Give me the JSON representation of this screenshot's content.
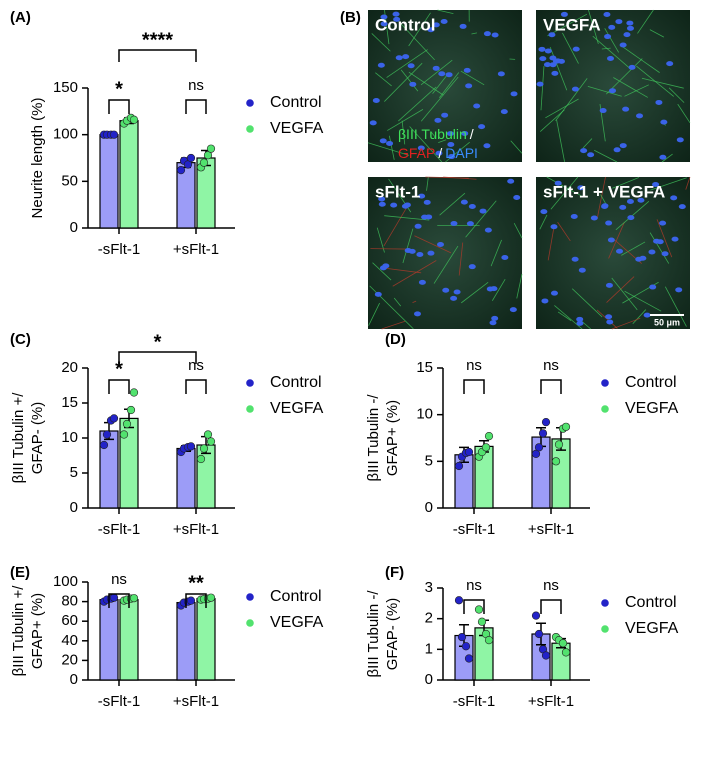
{
  "chart_data": [
    {
      "type": "bar",
      "panel_label": "(A)",
      "ylabel": [
        "Neurite length (%)"
      ],
      "categories": [
        "-sFlt-1",
        "+sFlt-1"
      ],
      "series": [
        {
          "name": "Control",
          "color": "#9c9cf7",
          "point_color": "#2323c8",
          "values": [
            100,
            70
          ],
          "errors": [
            0,
            5
          ],
          "points": [
            [
              100,
              100,
              100,
              100
            ],
            [
              62,
              72,
              68,
              75
            ]
          ]
        },
        {
          "name": "VEGFA",
          "color": "#8ff5a5",
          "point_color": "#52e26e",
          "values": [
            115,
            75
          ],
          "errors": [
            3,
            8
          ],
          "points": [
            [
              112,
              115,
              118,
              116
            ],
            [
              65,
              70,
              78,
              85
            ]
          ]
        }
      ],
      "ylim": [
        0,
        150
      ],
      "yticks": [
        0,
        50,
        100,
        150
      ],
      "brackets": {
        "within": [
          "*",
          "ns"
        ],
        "across": "****"
      }
    },
    {
      "type": "bar",
      "panel_label": "(C)",
      "ylabel": [
        "βIII Tubulin +/",
        "GFAP- (%)"
      ],
      "categories": [
        "-sFlt-1",
        "+sFlt-1"
      ],
      "series": [
        {
          "name": "Control",
          "color": "#9c9cf7",
          "point_color": "#2323c8",
          "values": [
            11,
            8.5
          ],
          "errors": [
            1.2,
            0.4
          ],
          "points": [
            [
              9,
              10.5,
              12.5,
              12.8
            ],
            [
              8,
              8.5,
              8.7,
              8.8
            ]
          ]
        },
        {
          "name": "VEGFA",
          "color": "#8ff5a5",
          "point_color": "#52e26e",
          "values": [
            12.8,
            9
          ],
          "errors": [
            1.3,
            1.2
          ],
          "points": [
            [
              10.5,
              12,
              14,
              16.5
            ],
            [
              7,
              8.5,
              10.5,
              9.5
            ]
          ]
        }
      ],
      "ylim": [
        0,
        20
      ],
      "yticks": [
        0,
        5,
        10,
        15,
        20
      ],
      "brackets": {
        "within": [
          "*",
          "ns"
        ],
        "across": "*"
      }
    },
    {
      "type": "bar",
      "panel_label": "(D)",
      "ylabel": [
        "βIII Tubulin -/",
        "GFAP+ (%)"
      ],
      "categories": [
        "-sFlt-1",
        "+sFlt-1"
      ],
      "series": [
        {
          "name": "Control",
          "color": "#9c9cf7",
          "point_color": "#2323c8",
          "values": [
            5.7,
            7.6
          ],
          "errors": [
            0.8,
            1.0
          ],
          "points": [
            [
              4.5,
              5.5,
              5.9,
              6
            ],
            [
              5.8,
              6.5,
              8,
              9.2
            ]
          ]
        },
        {
          "name": "VEGFA",
          "color": "#8ff5a5",
          "point_color": "#52e26e",
          "values": [
            6.6,
            7.4
          ],
          "errors": [
            0.6,
            1.2
          ],
          "points": [
            [
              5.5,
              6,
              6.5,
              7.7
            ],
            [
              5,
              6.8,
              8.5,
              8.7
            ]
          ]
        }
      ],
      "ylim": [
        0,
        15
      ],
      "yticks": [
        0,
        5,
        10,
        15
      ],
      "brackets": {
        "within": [
          "ns",
          "ns"
        ]
      }
    },
    {
      "type": "bar",
      "panel_label": "(E)",
      "ylabel": [
        "βIII Tubulin +/",
        "GFAP+ (%)"
      ],
      "categories": [
        "-sFlt-1",
        "+sFlt-1"
      ],
      "series": [
        {
          "name": "Control",
          "color": "#9c9cf7",
          "point_color": "#2323c8",
          "values": [
            82,
            79
          ],
          "errors": [
            1.5,
            1.5
          ],
          "points": [
            [
              80,
              82,
              83,
              84
            ],
            [
              76,
              79,
              80,
              81
            ]
          ]
        },
        {
          "name": "VEGFA",
          "color": "#8ff5a5",
          "point_color": "#52e26e",
          "values": [
            82,
            83
          ],
          "errors": [
            1,
            1
          ],
          "points": [
            [
              81,
              82,
              83,
              83.5
            ],
            [
              82,
              82.5,
              83,
              84
            ]
          ]
        }
      ],
      "ylim": [
        0,
        100
      ],
      "yticks": [
        0,
        20,
        40,
        60,
        80,
        100
      ],
      "brackets": {
        "within": [
          "ns",
          "**"
        ]
      }
    },
    {
      "type": "bar",
      "panel_label": "(F)",
      "ylabel": [
        "βIII Tubulin -/",
        "GFAP- (%)"
      ],
      "categories": [
        "-sFlt-1",
        "+sFlt-1"
      ],
      "series": [
        {
          "name": "Control",
          "color": "#9c9cf7",
          "point_color": "#2323c8",
          "values": [
            1.45,
            1.5
          ],
          "errors": [
            0.35,
            0.35
          ],
          "points": [
            [
              2.6,
              1.4,
              1.1,
              0.7
            ],
            [
              2.1,
              1.5,
              1.0,
              0.8
            ]
          ]
        },
        {
          "name": "VEGFA",
          "color": "#8ff5a5",
          "point_color": "#52e26e",
          "values": [
            1.7,
            1.2
          ],
          "errors": [
            0.25,
            0.15
          ],
          "points": [
            [
              2.3,
              1.9,
              1.5,
              1.3
            ],
            [
              1.4,
              1.3,
              1.2,
              0.9
            ]
          ]
        }
      ],
      "ylim": [
        0,
        3
      ],
      "yticks": [
        0,
        1,
        2,
        3
      ],
      "brackets": {
        "within": [
          "ns",
          "ns"
        ]
      }
    }
  ],
  "image_panel": {
    "label": "(B)",
    "images": [
      "Control",
      "VEGFA",
      "sFlt-1",
      "sFlt-1 + VEGFA"
    ],
    "stain_legend": [
      "βIII Tubulin",
      "/",
      "GFAP",
      "/",
      "DAPI"
    ],
    "scale_bar": "50 μm"
  }
}
